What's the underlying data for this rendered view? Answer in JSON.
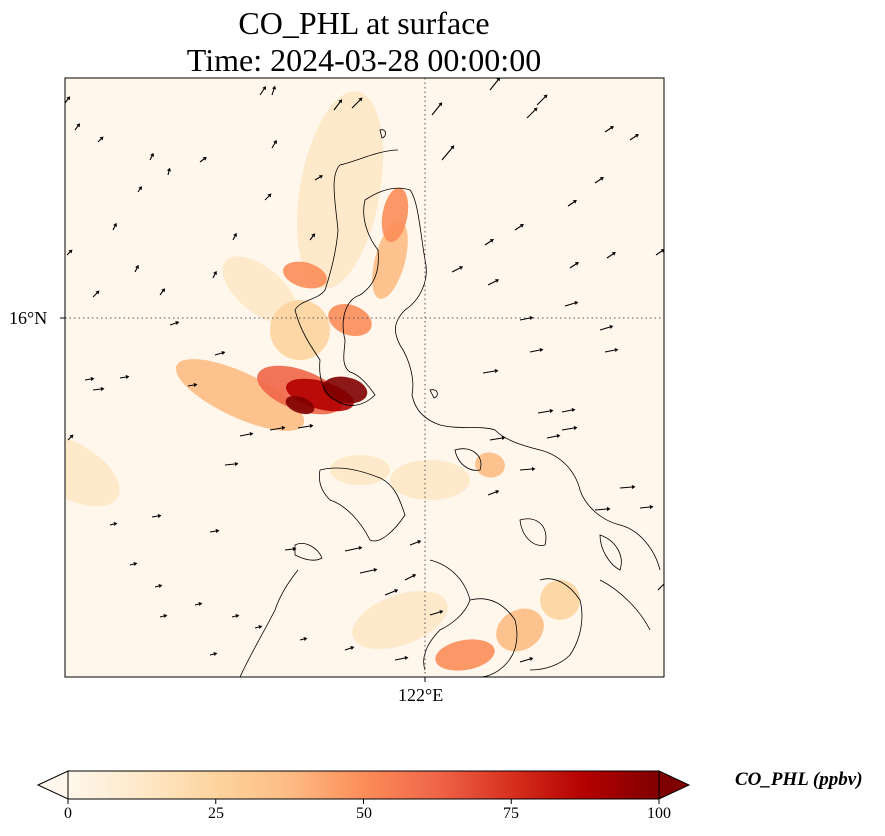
{
  "title": {
    "line1": "CO_PHL at surface",
    "line2": "Time: 2024-03-28 00:00:00"
  },
  "map": {
    "lat_tick_label": "16°N",
    "lon_tick_label": "122°E",
    "gridline_style": "dotted",
    "colormap": "OrRd",
    "colors": {
      "low": "#fff7ec",
      "c1": "#fee8c8",
      "c2": "#fdd49e",
      "c3": "#fdbb84",
      "c4": "#fc8d59",
      "c5": "#ef6548",
      "c6": "#d7301f",
      "c7": "#b30000",
      "high": "#7f0000",
      "coastline": "#000000",
      "wind_arrows": "#000000"
    },
    "overlays": [
      "coastline",
      "wind-vectors"
    ]
  },
  "colorbar": {
    "units_label": "CO_PHL (ppbv)",
    "ticks": [
      "0",
      "25",
      "50",
      "75",
      "100"
    ],
    "min": 0,
    "max": 100,
    "extend": "both"
  }
}
